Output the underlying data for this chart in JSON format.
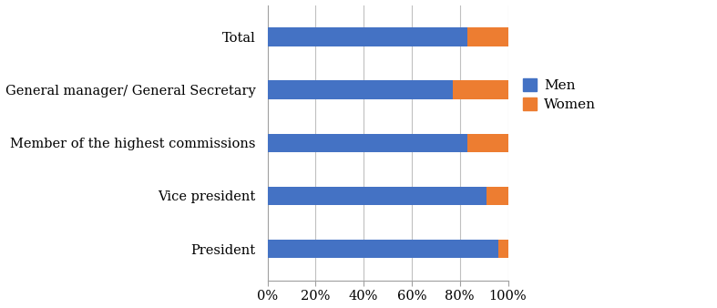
{
  "categories": [
    "President",
    "Vice president",
    "Member of the highest commissions",
    "General manager/ General Secretary",
    "Total"
  ],
  "men": [
    96,
    91,
    83,
    77,
    83
  ],
  "women": [
    4,
    9,
    17,
    23,
    17
  ],
  "men_color": "#4472C4",
  "women_color": "#ED7D31",
  "xlim": [
    0,
    100
  ],
  "xticks": [
    0,
    20,
    40,
    60,
    80,
    100
  ],
  "xticklabels": [
    "0%",
    "20%",
    "40%",
    "60%",
    "80%",
    "100%"
  ],
  "legend_labels": [
    "Men",
    "Women"
  ],
  "bar_height": 0.35,
  "figsize": [
    7.87,
    3.38
  ],
  "dpi": 100,
  "grid_color": "#C0C0C0",
  "spine_color": "#A0A0A0"
}
